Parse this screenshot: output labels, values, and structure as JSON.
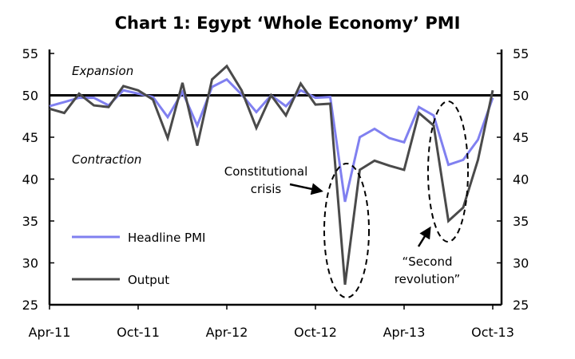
{
  "chart_data": {
    "type": "line",
    "title": "Chart 1: Egypt ‘Whole Economy’ PMI",
    "xlabel": "",
    "ylabel": "",
    "ylim": [
      25,
      55
    ],
    "yticks": [
      25,
      30,
      35,
      40,
      45,
      50,
      55
    ],
    "xtick_labels": [
      "Apr-11",
      "Oct-11",
      "Apr-12",
      "Oct-12",
      "Apr-13",
      "Oct-13"
    ],
    "x_start": "Apr-11",
    "x_end": "Oct-13",
    "reference_line": 50,
    "series": [
      {
        "name": "Headline PMI",
        "color": "#8080f0",
        "values": [
          48.7,
          49.2,
          49.7,
          49.7,
          48.8,
          50.6,
          50.2,
          49.8,
          47.4,
          50.4,
          46.4,
          51.0,
          51.9,
          50.1,
          48.0,
          50.0,
          48.7,
          50.6,
          49.7,
          49.8,
          37.3,
          45.0,
          46.0,
          44.9,
          44.4,
          48.6,
          47.6,
          41.7,
          42.3,
          44.7,
          49.7
        ]
      },
      {
        "name": "Output",
        "color": "#4a4a4a",
        "values": [
          48.4,
          47.9,
          50.2,
          48.8,
          48.6,
          51.1,
          50.6,
          49.5,
          44.9,
          51.5,
          44.0,
          51.9,
          53.5,
          50.6,
          46.1,
          50.0,
          47.6,
          51.4,
          48.9,
          49.0,
          27.4,
          41.1,
          42.2,
          41.6,
          41.1,
          47.9,
          46.4,
          35.0,
          36.6,
          42.3,
          50.6
        ]
      }
    ],
    "annotations": {
      "expansion": "Expansion",
      "contraction": "Contraction",
      "constitutional_1": "Constitutional",
      "constitutional_2": "crisis",
      "second_1": "“Second",
      "second_2": "revolution”"
    },
    "legend": "left"
  }
}
